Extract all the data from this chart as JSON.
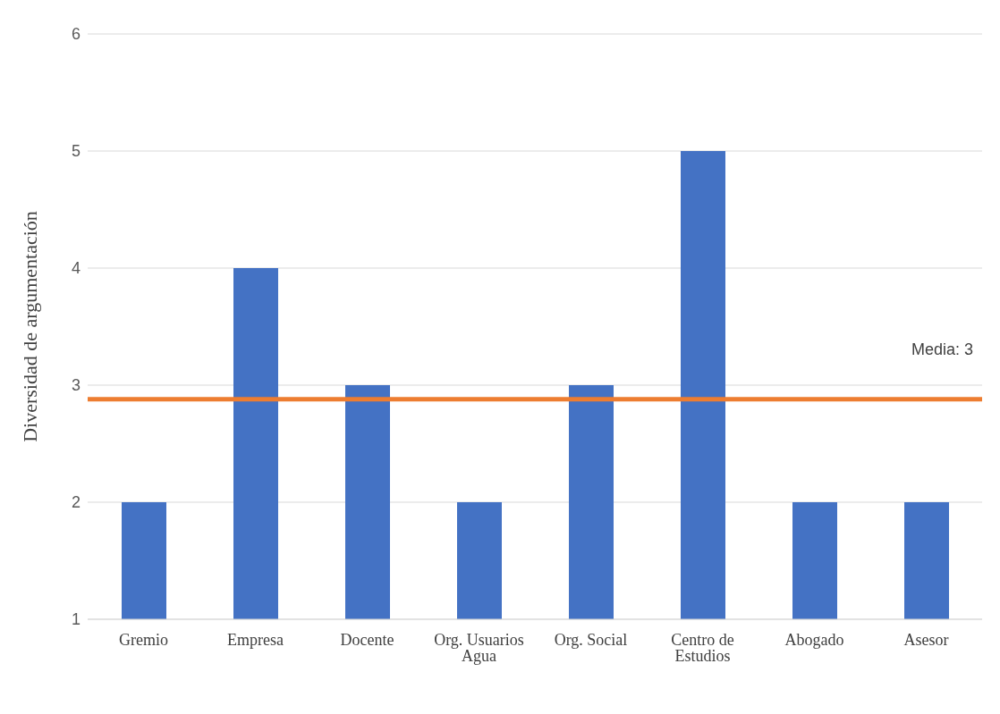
{
  "chart_data": {
    "type": "bar",
    "ylabel": "Diversidad de argumentación",
    "categories": [
      "Gremio",
      "Empresa",
      "Docente",
      "Org. Usuarios Agua",
      "Org. Social",
      "Centro de Estudios",
      "Abogado",
      "Asesor"
    ],
    "values": [
      2,
      4,
      3,
      2,
      3,
      5,
      2,
      2
    ],
    "color": "#4472c4",
    "ylim": [
      1,
      6
    ],
    "yticks": [
      1,
      2,
      3,
      4,
      5,
      6
    ],
    "grid": "y",
    "ref_lines": [
      {
        "axis": "y",
        "value": 2.88,
        "label": "Media: 3",
        "color": "#ed7d31"
      }
    ]
  }
}
